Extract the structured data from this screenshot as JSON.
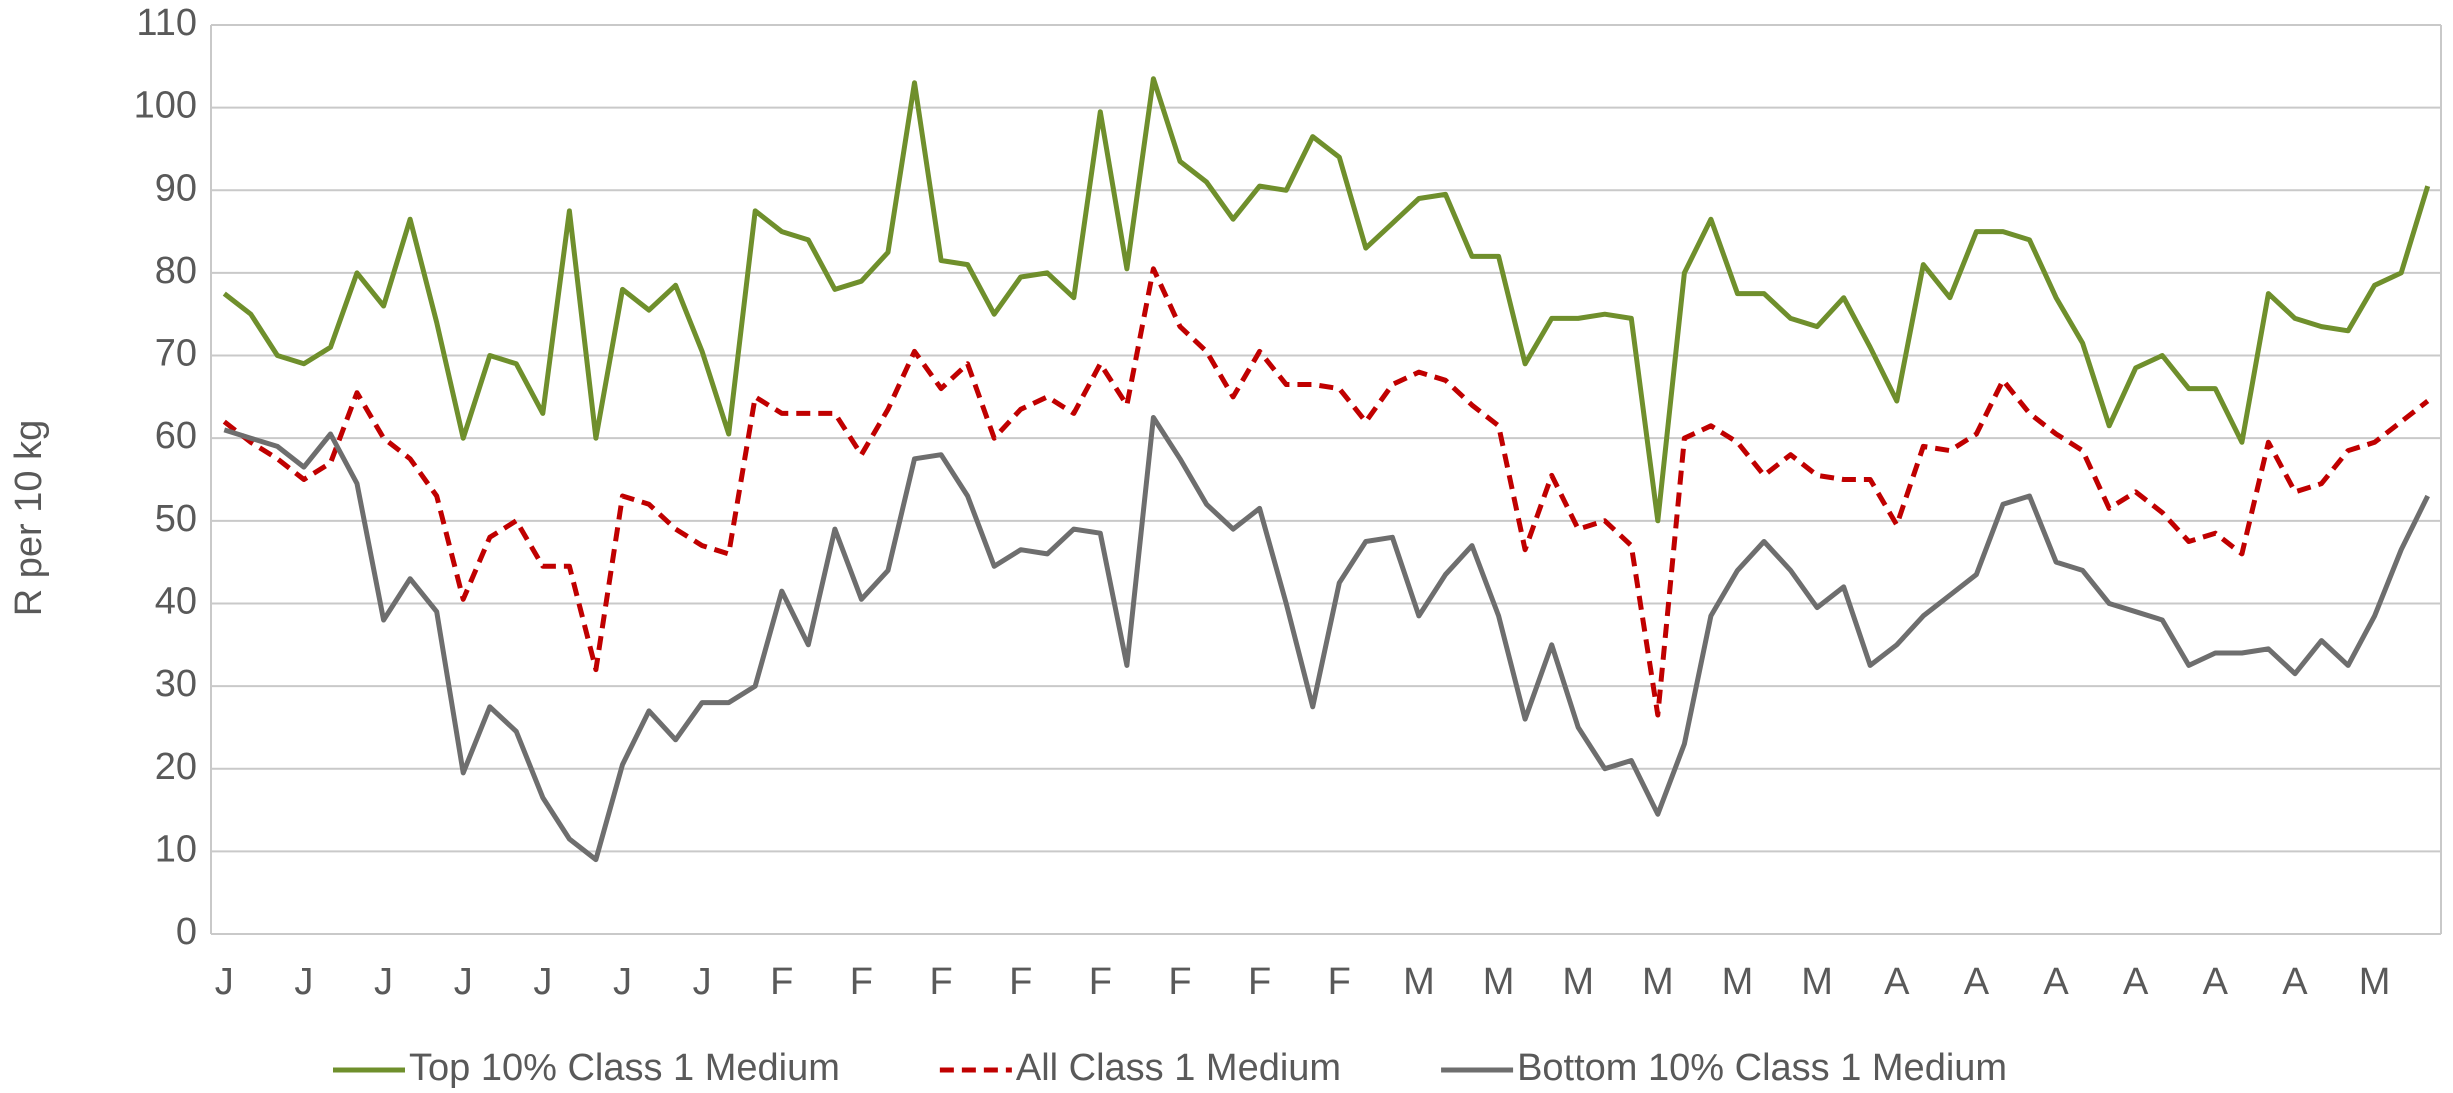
{
  "chart_data": {
    "type": "line",
    "y_label": "R per 10 kg",
    "categories": [
      "J",
      null,
      null,
      "J",
      null,
      null,
      "J",
      null,
      null,
      "J",
      null,
      null,
      "J",
      null,
      null,
      "J",
      null,
      null,
      "J",
      null,
      null,
      "F",
      null,
      null,
      "F",
      null,
      null,
      "F",
      null,
      null,
      "F",
      null,
      null,
      "F",
      null,
      null,
      "F",
      null,
      null,
      "F",
      null,
      null,
      "F",
      null,
      null,
      "M",
      null,
      null,
      "M",
      null,
      null,
      "M",
      null,
      null,
      "M",
      null,
      null,
      "M",
      null,
      null,
      "M",
      null,
      null,
      "A",
      null,
      null,
      "A",
      null,
      null,
      "A",
      null,
      null,
      "A",
      null,
      null,
      "A",
      null,
      null,
      "A",
      null,
      null,
      "M",
      null,
      null
    ],
    "series": [
      {
        "name": "Top 10% Class 1 Medium",
        "color": "#6f8f2c",
        "dash": false,
        "values": [
          77.5,
          75,
          70,
          69,
          71,
          80,
          76,
          86.5,
          74,
          60,
          70,
          69,
          63,
          87.5,
          60,
          78,
          75.5,
          78.5,
          70.5,
          60.5,
          87.5,
          85,
          84,
          78,
          79,
          82.5,
          103,
          81.5,
          81,
          75,
          79.5,
          80,
          77,
          99.5,
          80.5,
          103.5,
          93.5,
          91,
          86.5,
          90.5,
          90,
          96.5,
          94,
          83,
          86,
          89,
          89.5,
          82,
          82,
          69,
          74.5,
          74.5,
          75,
          74.5,
          50,
          80,
          86.5,
          77.5,
          77.5,
          74.5,
          73.5,
          77,
          71,
          64.5,
          81,
          77,
          85,
          85,
          84,
          77,
          71.5,
          61.5,
          68.5,
          70,
          66,
          66,
          59.5,
          77.5,
          74.5,
          73.5,
          73,
          78.5,
          80,
          90.5
        ]
      },
      {
        "name": "All Class 1 Medium",
        "color": "#c00000",
        "dash": true,
        "values": [
          62,
          59.5,
          57.5,
          55,
          57,
          65.5,
          60,
          57.5,
          53,
          40.5,
          48,
          50,
          44.5,
          44.5,
          32,
          53,
          52,
          49,
          47,
          46,
          65,
          63,
          63,
          63,
          58,
          63.5,
          70.5,
          66,
          69,
          60,
          63.5,
          65,
          63,
          69,
          64,
          80.5,
          73.5,
          70.5,
          65,
          70.5,
          66.5,
          66.5,
          66,
          62,
          66.5,
          68,
          67,
          64,
          61.5,
          46.5,
          55.5,
          49,
          50,
          47,
          26.5,
          60,
          61.5,
          59.5,
          55.5,
          58,
          55.5,
          55,
          55,
          49.5,
          59,
          58.5,
          60.5,
          67,
          63,
          60.5,
          58.5,
          51.5,
          53.5,
          51,
          47.5,
          48.5,
          46,
          59.5,
          53.5,
          54.5,
          58.5,
          59.5,
          62,
          64.5
        ]
      },
      {
        "name": "Bottom 10% Class 1 Medium",
        "color": "#6e6e6e",
        "dash": false,
        "values": [
          61,
          60,
          59,
          56.5,
          60.5,
          54.5,
          38,
          43,
          39,
          19.5,
          27.5,
          24.5,
          16.5,
          11.5,
          9,
          20.5,
          27,
          23.5,
          28,
          28,
          30,
          41.5,
          35,
          49,
          40.5,
          44,
          57.5,
          58,
          53,
          44.5,
          46.5,
          46,
          49,
          48.5,
          32.5,
          62.5,
          57.5,
          52,
          49,
          51.5,
          40,
          27.5,
          42.5,
          47.5,
          48,
          38.5,
          43.5,
          47,
          38.5,
          26,
          35,
          25,
          20,
          21,
          14.5,
          23,
          38.5,
          44,
          47.5,
          44,
          39.5,
          42,
          32.5,
          35,
          38.5,
          41,
          43.5,
          52,
          53,
          45,
          44,
          40,
          39,
          38,
          32.5,
          34,
          34,
          34.5,
          31.5,
          35.5,
          32.5,
          38.5,
          46.5,
          53
        ]
      }
    ],
    "ylim": [
      0,
      110
    ],
    "yticks": [
      0,
      10,
      20,
      30,
      40,
      50,
      60,
      70,
      80,
      90,
      100,
      110
    ],
    "grid": true,
    "legend": "bottom"
  }
}
